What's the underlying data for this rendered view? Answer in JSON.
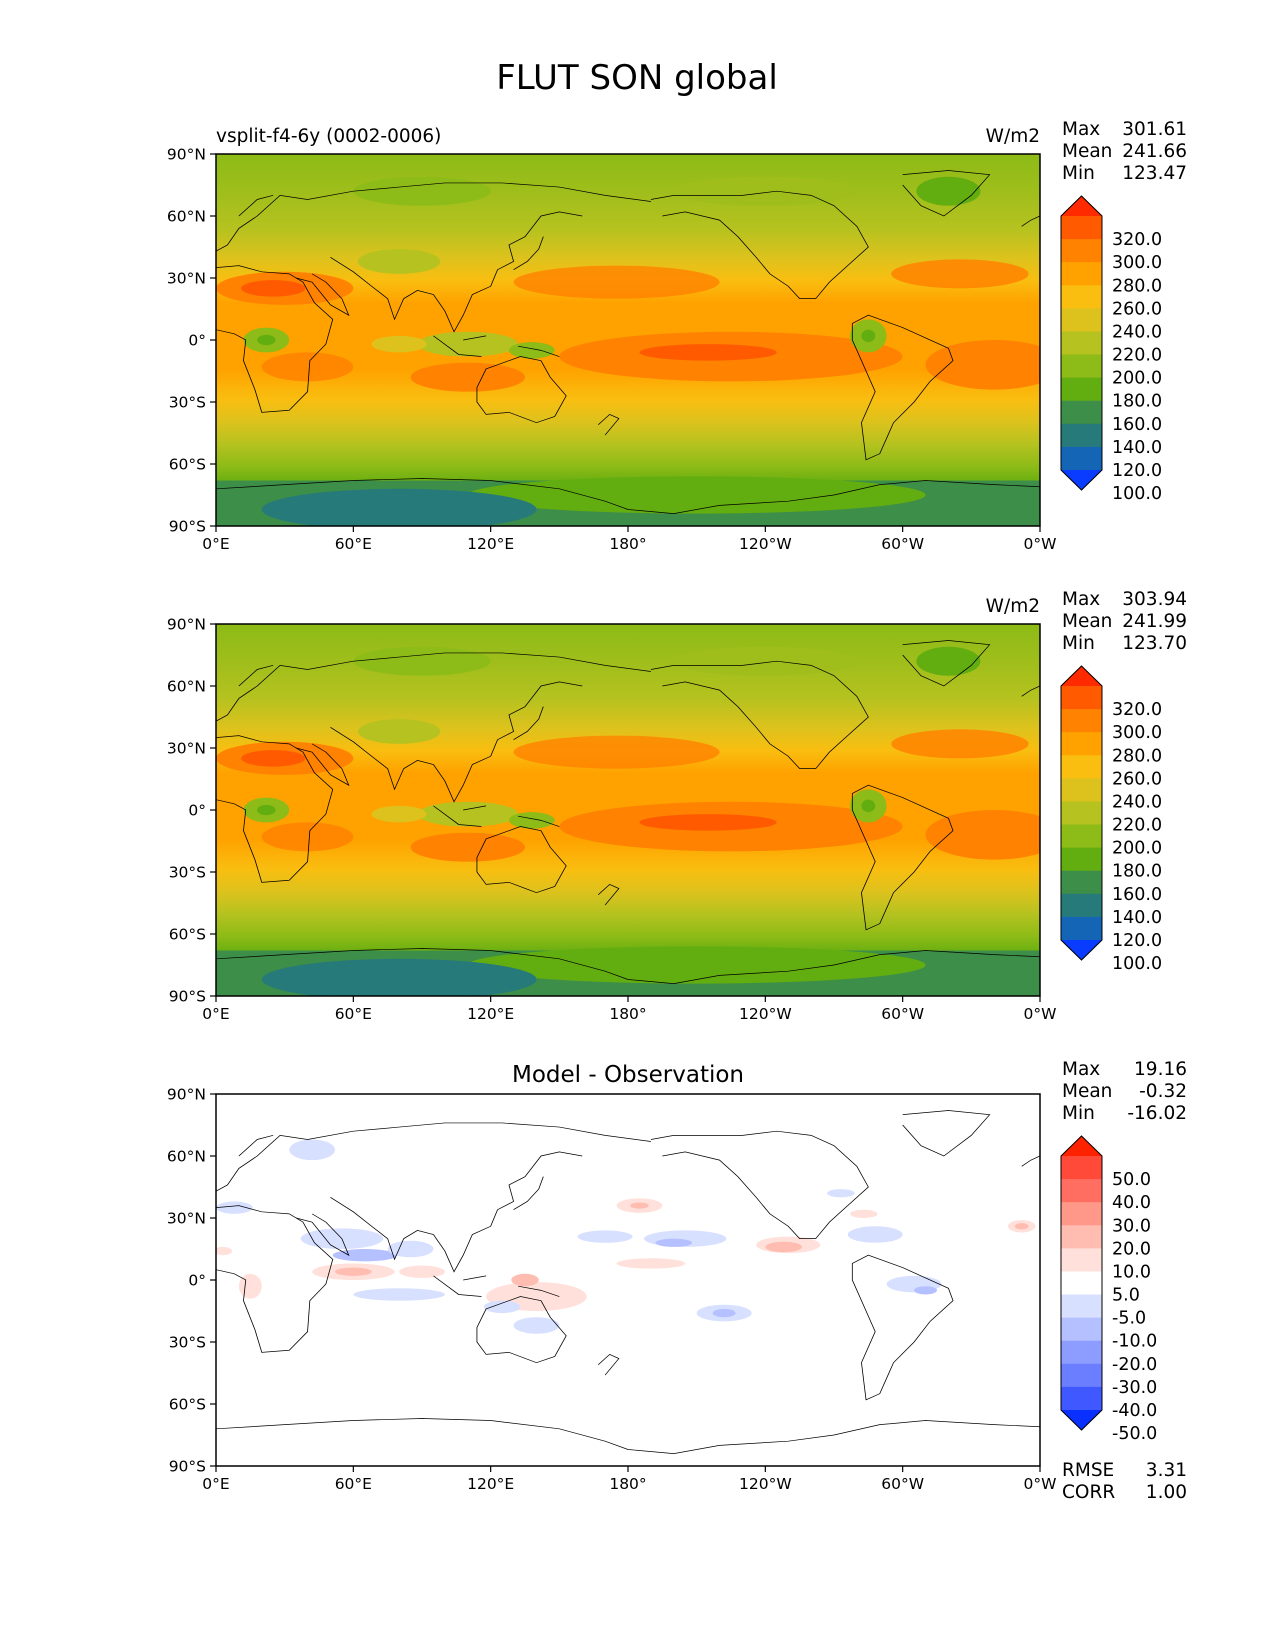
{
  "figure": {
    "title": "FLUT SON global",
    "lat_ticks": [
      "90°N",
      "60°N",
      "30°N",
      "0°",
      "30°S",
      "60°S",
      "90°S"
    ],
    "lon_ticks": [
      "0°E",
      "60°E",
      "120°E",
      "180°",
      "120°W",
      "60°W",
      "0°W"
    ]
  },
  "panels": [
    {
      "id": "test",
      "left_title": "vsplit-f4-6y (0002-0006)",
      "center_title": "",
      "units": "W/m2",
      "stats": [
        {
          "label": "Max",
          "value": "301.61"
        },
        {
          "label": "Mean",
          "value": "241.66"
        },
        {
          "label": "Min",
          "value": "123.47"
        }
      ],
      "colorbar": {
        "labels": [
          "320.0",
          "300.0",
          "280.0",
          "260.0",
          "240.0",
          "220.0",
          "200.0",
          "180.0",
          "160.0",
          "140.0",
          "120.0",
          "100.0"
        ],
        "colors": [
          "#ff2a00",
          "#ff5a00",
          "#ff8200",
          "#ffa200",
          "#f9be10",
          "#ddc21d",
          "#b5c21f",
          "#8dbb17",
          "#62ad10",
          "#3d8e48",
          "#267a7a",
          "#1565b7",
          "#0a3cff"
        ]
      }
    },
    {
      "id": "reference",
      "left_title": "",
      "center_title": "",
      "units": "W/m2",
      "stats": [
        {
          "label": "Max",
          "value": "303.94"
        },
        {
          "label": "Mean",
          "value": "241.99"
        },
        {
          "label": "Min",
          "value": "123.70"
        }
      ],
      "colorbar": {
        "labels": [
          "320.0",
          "300.0",
          "280.0",
          "260.0",
          "240.0",
          "220.0",
          "200.0",
          "180.0",
          "160.0",
          "140.0",
          "120.0",
          "100.0"
        ],
        "colors": [
          "#ff2a00",
          "#ff5a00",
          "#ff8200",
          "#ffa200",
          "#f9be10",
          "#ddc21d",
          "#b5c21f",
          "#8dbb17",
          "#62ad10",
          "#3d8e48",
          "#267a7a",
          "#1565b7",
          "#0a3cff"
        ]
      }
    },
    {
      "id": "difference",
      "left_title": "",
      "center_title": "Model - Observation",
      "units": "",
      "stats": [
        {
          "label": "Max",
          "value": "19.16"
        },
        {
          "label": "Mean",
          "value": "-0.32"
        },
        {
          "label": "Min",
          "value": "-16.02"
        }
      ],
      "colorbar": {
        "labels": [
          "50.0",
          "40.0",
          "30.0",
          "20.0",
          "10.0",
          "5.0",
          "-5.0",
          "-10.0",
          "-20.0",
          "-30.0",
          "-40.0",
          "-50.0"
        ],
        "colors": [
          "#ff2200",
          "#ff4a3a",
          "#ff6e60",
          "#ff9888",
          "#ffbcb0",
          "#ffe0da",
          "#ffffff",
          "#d8e0ff",
          "#b4c0ff",
          "#8c9cff",
          "#6a7eff",
          "#4058ff",
          "#0a30ff"
        ]
      },
      "metrics": [
        {
          "label": "RMSE",
          "value": "3.31"
        },
        {
          "label": "CORR",
          "value": "1.00"
        }
      ]
    }
  ]
}
